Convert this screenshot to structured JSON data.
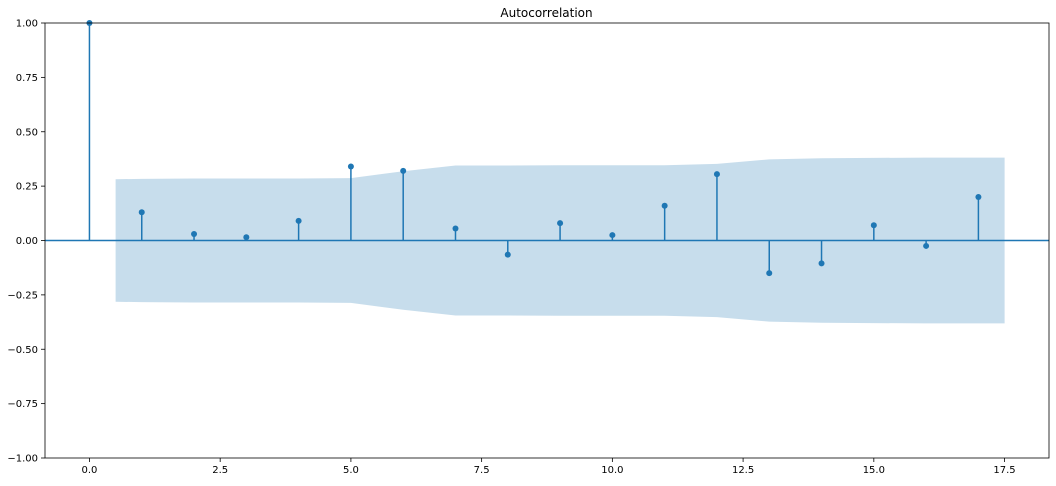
{
  "chart_data": {
    "type": "stem",
    "title": "Autocorrelation",
    "xlabel": "",
    "ylabel": "",
    "xlim": [
      -0.85,
      18.35
    ],
    "ylim": [
      -1.0,
      1.0
    ],
    "xticks": [
      0.0,
      2.5,
      5.0,
      7.5,
      10.0,
      12.5,
      15.0,
      17.5
    ],
    "xtick_labels": [
      "0.0",
      "2.5",
      "5.0",
      "7.5",
      "10.0",
      "12.5",
      "15.0",
      "17.5"
    ],
    "yticks": [
      1.0,
      0.75,
      0.5,
      0.25,
      0.0,
      -0.25,
      -0.5,
      -0.75,
      -1.0
    ],
    "ytick_labels": [
      "1.00",
      "0.75",
      "0.50",
      "0.25",
      "0.00",
      "−0.25",
      "−0.50",
      "−0.75",
      "−1.00"
    ],
    "grid": false,
    "series": [
      {
        "lags": [
          0,
          1,
          2,
          3,
          4,
          5,
          6,
          7,
          8,
          9,
          10,
          11,
          12,
          13,
          14,
          15,
          16,
          17
        ],
        "values": [
          1.0,
          0.13,
          0.03,
          0.015,
          0.09,
          0.34,
          0.32,
          0.055,
          -0.065,
          0.08,
          0.025,
          0.16,
          0.305,
          -0.15,
          -0.105,
          0.07,
          -0.025,
          0.2
        ]
      }
    ],
    "confidence_band": {
      "lags": [
        0.5,
        1,
        2,
        3,
        4,
        5,
        6,
        7,
        8,
        9,
        10,
        11,
        12,
        13,
        14,
        15,
        16,
        17,
        17.5
      ],
      "upper": [
        0.282,
        0.283,
        0.285,
        0.285,
        0.285,
        0.287,
        0.318,
        0.345,
        0.345,
        0.346,
        0.346,
        0.346,
        0.352,
        0.373,
        0.378,
        0.38,
        0.381,
        0.381,
        0.381
      ]
    },
    "colors": {
      "stem": "#1f77b4",
      "band": "#1f77b4",
      "band_opacity": 0.25,
      "zero_line": "#1f77b4"
    }
  }
}
